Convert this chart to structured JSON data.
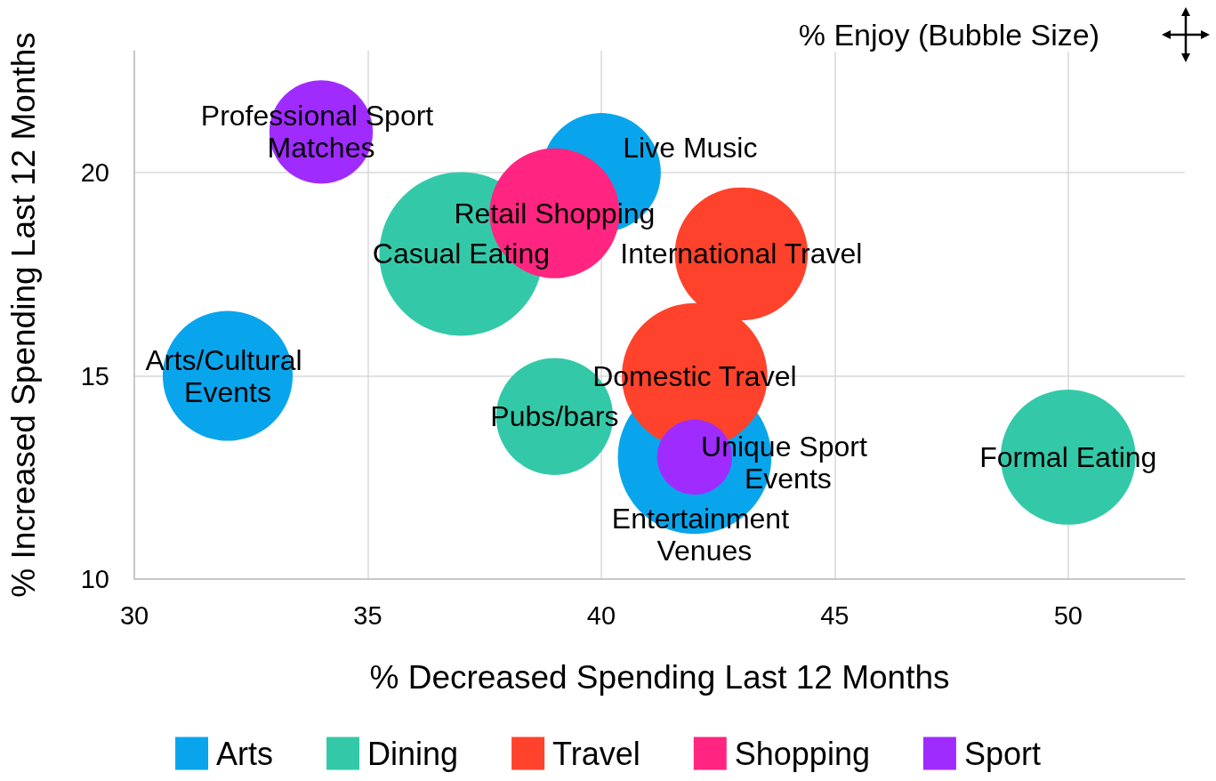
{
  "chart_data": {
    "type": "bubble",
    "xlabel": "% Decreased Spending Last 12 Months",
    "ylabel": "% Increased Spending Last 12 Months",
    "annotations": [
      "% Enjoy (Bubble Size)"
    ],
    "xlim": [
      30,
      52.5
    ],
    "xticks": [
      30,
      35,
      40,
      45,
      50
    ],
    "ylim": [
      10,
      23
    ],
    "yticks": [
      10,
      15,
      20
    ],
    "grid": true,
    "legend": "bottom",
    "marker": "circle",
    "series": [
      {
        "name": "Arts",
        "color": "#09a5ec",
        "x": [
          32,
          40,
          42
        ],
        "values": [
          15,
          20,
          13
        ],
        "sizes": [
          0.63,
          0.53,
          0.88
        ],
        "value_labels": [
          "Arts/Cultural Events",
          "Live Music",
          "Entertainment Venues"
        ]
      },
      {
        "name": "Dining",
        "color": "#33c9a8",
        "x": [
          37,
          39,
          50
        ],
        "values": [
          18,
          14,
          13
        ],
        "sizes": [
          1,
          0.51,
          0.68
        ],
        "value_labels": [
          "Casual Eating",
          "Pubs/bars",
          "Formal Eating"
        ]
      },
      {
        "name": "Travel",
        "color": "#ff422b",
        "x": [
          43,
          42
        ],
        "values": [
          18,
          15
        ],
        "sizes": [
          0.66,
          0.79
        ],
        "value_labels": [
          "International Travel",
          "Domestic Travel"
        ]
      },
      {
        "name": "Shopping",
        "color": "#ff2580",
        "x": [
          39
        ],
        "values": [
          19
        ],
        "sizes": [
          0.63
        ],
        "value_labels": [
          "Retail Shopping"
        ]
      },
      {
        "name": "Sport",
        "color": "#a02bff",
        "x": [
          34,
          42
        ],
        "values": [
          21,
          13
        ],
        "sizes": [
          0.4,
          0.21
        ],
        "value_labels": [
          "Professional Sport Matches",
          "Unique Sport Events"
        ]
      }
    ]
  }
}
